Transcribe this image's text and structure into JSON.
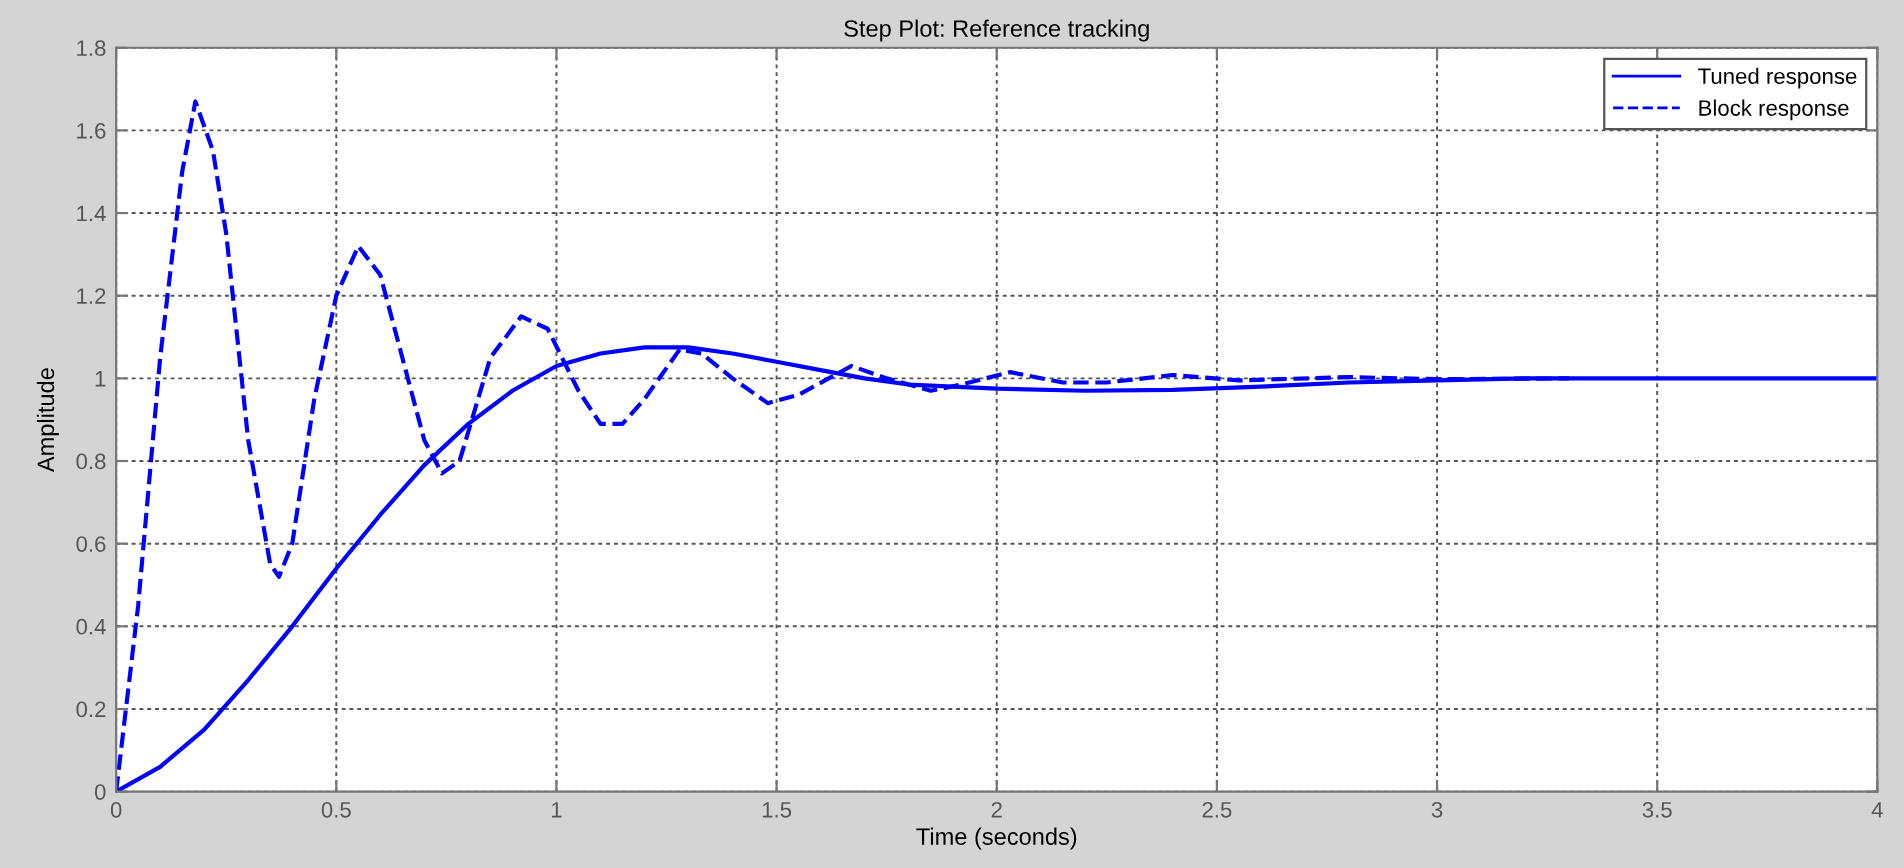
{
  "chart_data": {
    "type": "line",
    "title": "Step Plot: Reference tracking",
    "xlabel": "Time (seconds)",
    "ylabel": "Amplitude",
    "xlim": [
      0,
      4
    ],
    "xticks": [
      0,
      0.5,
      1,
      1.5,
      2,
      2.5,
      3,
      3.5,
      4
    ],
    "ylim": [
      0,
      1.8
    ],
    "yticks": [
      0,
      0.2,
      0.4,
      0.6,
      0.8,
      1,
      1.2,
      1.4,
      1.6,
      1.8
    ],
    "grid": true,
    "legend": "top right",
    "series": [
      {
        "name": "Tuned response",
        "color": "#0000ff",
        "line_style": "solid",
        "x": [
          0,
          0.1,
          0.2,
          0.3,
          0.4,
          0.5,
          0.6,
          0.7,
          0.8,
          0.9,
          1.0,
          1.1,
          1.2,
          1.3,
          1.4,
          1.5,
          1.6,
          1.7,
          1.8,
          2.0,
          2.2,
          2.4,
          2.6,
          2.8,
          3.0,
          3.2,
          3.5,
          4.0
        ],
        "values": [
          0,
          0.06,
          0.15,
          0.27,
          0.4,
          0.54,
          0.67,
          0.79,
          0.89,
          0.97,
          1.03,
          1.06,
          1.075,
          1.075,
          1.06,
          1.04,
          1.02,
          1.0,
          0.985,
          0.975,
          0.97,
          0.972,
          0.98,
          0.99,
          0.995,
          1.0,
          1.0,
          1.0
        ]
      },
      {
        "name": "Block response",
        "color": "#0000ff",
        "line_style": "dashed",
        "x": [
          0,
          0.05,
          0.1,
          0.15,
          0.18,
          0.22,
          0.25,
          0.3,
          0.35,
          0.37,
          0.4,
          0.45,
          0.5,
          0.55,
          0.6,
          0.65,
          0.7,
          0.74,
          0.78,
          0.85,
          0.92,
          0.98,
          1.05,
          1.1,
          1.15,
          1.2,
          1.28,
          1.33,
          1.4,
          1.48,
          1.55,
          1.67,
          1.75,
          1.85,
          1.92,
          2.03,
          2.15,
          2.25,
          2.4,
          2.55,
          2.8,
          3.0,
          3.3
        ],
        "values": [
          0,
          0.45,
          1.05,
          1.5,
          1.67,
          1.55,
          1.35,
          0.85,
          0.55,
          0.52,
          0.6,
          0.95,
          1.2,
          1.32,
          1.25,
          1.05,
          0.85,
          0.77,
          0.8,
          1.05,
          1.15,
          1.12,
          0.97,
          0.89,
          0.89,
          0.95,
          1.07,
          1.06,
          1.0,
          0.94,
          0.96,
          1.03,
          1.0,
          0.97,
          0.985,
          1.015,
          0.99,
          0.99,
          1.008,
          0.995,
          1.003,
          0.998,
          1.0
        ]
      }
    ]
  }
}
